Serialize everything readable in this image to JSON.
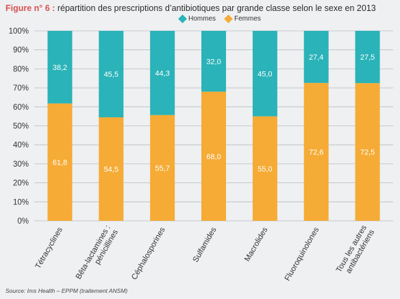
{
  "title": {
    "label": "Figure n° 6 :",
    "text": "répartition des prescriptions d’antibiotiques par grande classe selon le sexe en 2013"
  },
  "source": "Source: Ims Health – EPPM (traitement ANSM)",
  "colors": {
    "hommes": "#2ab3b8",
    "femmes": "#f5ab35",
    "grid": "#b8bcc0",
    "background": "#eef0f2"
  },
  "chart_data": {
    "type": "bar",
    "stacked": true,
    "categories": [
      "Tétracyclines",
      "Bêta-lactamines : pénicillines",
      "Céphalosporines",
      "Sulfamides",
      "Macrolides",
      "Fluoroquinolones",
      "Tous les autres antibactériens"
    ],
    "series": [
      {
        "name": "Femmes",
        "values": [
          61.8,
          54.5,
          55.7,
          68.0,
          55.0,
          72.6,
          72.5
        ]
      },
      {
        "name": "Hommes",
        "values": [
          38.2,
          45.5,
          44.3,
          32.0,
          45.0,
          27.4,
          27.5
        ]
      }
    ],
    "value_labels": {
      "Femmes": [
        "61,8",
        "54,5",
        "55,7",
        "68,0",
        "55,0",
        "72,6",
        "72,5"
      ],
      "Hommes": [
        "38,2",
        "45,5",
        "44,3",
        "32,0",
        "45,0",
        "27,4",
        "27,5"
      ]
    },
    "y_ticks": [
      "0%",
      "10%",
      "20%",
      "30%",
      "40%",
      "50%",
      "60%",
      "70%",
      "80%",
      "90%",
      "100%"
    ],
    "ylim": [
      0,
      100
    ],
    "legend": [
      "Hommes",
      "Femmes"
    ],
    "legend_position": "top",
    "grid": true
  }
}
